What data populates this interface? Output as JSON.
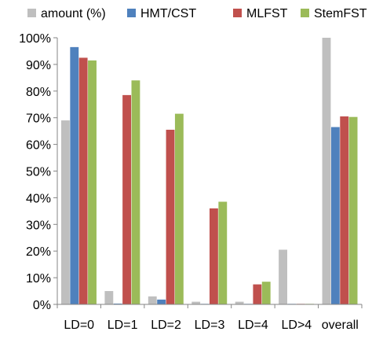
{
  "chart_data": {
    "type": "bar",
    "categories": [
      "LD=0",
      "LD=1",
      "LD=2",
      "LD=3",
      "LD=4",
      "LD>4",
      "overall"
    ],
    "series": [
      {
        "name": "amount (%)",
        "color": "#bfbfbf",
        "values": [
          69,
          5,
          3,
          1,
          1,
          20.5,
          100
        ]
      },
      {
        "name": "HMT/CST",
        "color": "#4f81bd",
        "values": [
          96.5,
          0.3,
          1.8,
          0.2,
          0.2,
          0.2,
          66.5
        ]
      },
      {
        "name": "MLFST",
        "color": "#c0504d",
        "values": [
          92.5,
          78.5,
          65.5,
          36,
          7.5,
          0.2,
          70.5
        ]
      },
      {
        "name": "StemFST",
        "color": "#9bbb59",
        "values": [
          91.5,
          84,
          71.5,
          38.5,
          8.5,
          0.2,
          70.3
        ]
      }
    ],
    "yticks": [
      "0%",
      "10%",
      "20%",
      "30%",
      "40%",
      "50%",
      "60%",
      "70%",
      "80%",
      "90%",
      "100%"
    ],
    "ylim": [
      0,
      100
    ],
    "grid": false,
    "legend_position": "top"
  }
}
